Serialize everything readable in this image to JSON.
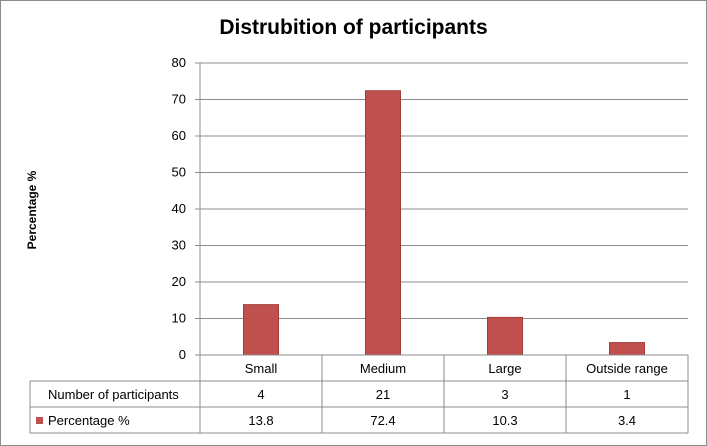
{
  "chart_data": {
    "type": "bar",
    "title": "Distrubition of participants",
    "ylabel": "Percentage %",
    "xlabel": "",
    "ylim": [
      0,
      80
    ],
    "yticks": [
      0,
      10,
      20,
      30,
      40,
      50,
      60,
      70,
      80
    ],
    "grid": true,
    "categories": [
      "Small",
      "Medium",
      "Large",
      "Outside range"
    ],
    "series": [
      {
        "name": "Percentage %",
        "values": [
          13.8,
          72.4,
          10.3,
          3.4
        ],
        "color": "#c0504d"
      }
    ],
    "data_table": {
      "rows": [
        {
          "label": "Number of participants",
          "values": [
            "4",
            "21",
            "3",
            "1"
          ],
          "legend_key": false
        },
        {
          "label": "Percentage %",
          "values": [
            "13.8",
            "72.4",
            "10.3",
            "3.4"
          ],
          "legend_key": true
        }
      ]
    }
  },
  "colors": {
    "bar": "#c0504d",
    "grid": "#8c8c8c"
  }
}
